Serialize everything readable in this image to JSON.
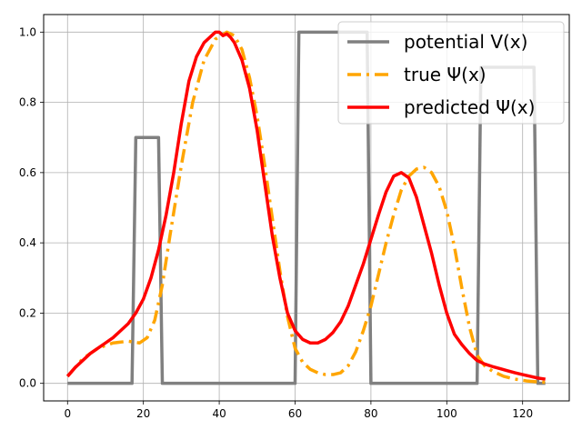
{
  "chart_data": {
    "type": "line",
    "title": "",
    "xlabel": "",
    "ylabel": "",
    "xlim": [
      -6.3,
      132.3
    ],
    "ylim": [
      -0.05,
      1.05
    ],
    "xticks": [
      0,
      20,
      40,
      60,
      80,
      100,
      120
    ],
    "yticks": [
      0.0,
      0.2,
      0.4,
      0.6,
      0.8,
      1.0
    ],
    "grid": true,
    "legend_position": "top-right",
    "series": [
      {
        "name": "potential V(x)",
        "color": "#808080",
        "style": "solid",
        "x": [
          0,
          17,
          18,
          24,
          25,
          60,
          61,
          79,
          80,
          108,
          109,
          123,
          124,
          126
        ],
        "y": [
          0,
          0,
          0.7,
          0.7,
          0,
          0,
          1.0,
          1.0,
          0,
          0,
          0.9,
          0.9,
          0,
          0
        ]
      },
      {
        "name": "true Ψ(x)",
        "color": "#ffa500",
        "style": "dashdot",
        "x": [
          0,
          4,
          8,
          12,
          16,
          19,
          21,
          23,
          25,
          27,
          30,
          33,
          36,
          39,
          42,
          44,
          46,
          48,
          50,
          52,
          54,
          56,
          58,
          60,
          62,
          64,
          66,
          68,
          70,
          72,
          74,
          76,
          78,
          80,
          82,
          84,
          86,
          88,
          90,
          92,
          94,
          96,
          98,
          100,
          102,
          104,
          106,
          108,
          110,
          112,
          115,
          118,
          121,
          124,
          126
        ],
        "y": [
          0.02,
          0.07,
          0.1,
          0.115,
          0.12,
          0.115,
          0.13,
          0.18,
          0.28,
          0.42,
          0.62,
          0.8,
          0.92,
          0.98,
          1.0,
          0.99,
          0.95,
          0.87,
          0.76,
          0.62,
          0.47,
          0.32,
          0.19,
          0.1,
          0.06,
          0.04,
          0.03,
          0.025,
          0.025,
          0.03,
          0.05,
          0.09,
          0.15,
          0.22,
          0.31,
          0.4,
          0.48,
          0.55,
          0.59,
          0.61,
          0.615,
          0.6,
          0.56,
          0.49,
          0.39,
          0.27,
          0.16,
          0.08,
          0.05,
          0.035,
          0.02,
          0.012,
          0.007,
          0.004,
          0.003
        ]
      },
      {
        "name": "predicted Ψ(x)",
        "color": "#ff0000",
        "style": "solid",
        "x": [
          0,
          2,
          4,
          6,
          8,
          10,
          12,
          14,
          16,
          18,
          20,
          22,
          24,
          26,
          28,
          30,
          32,
          34,
          36,
          38,
          39,
          40,
          41,
          42,
          43,
          44,
          46,
          48,
          50,
          52,
          54,
          56,
          58,
          60,
          62,
          64,
          66,
          68,
          70,
          72,
          74,
          76,
          78,
          80,
          82,
          84,
          86,
          88,
          90,
          92,
          94,
          96,
          98,
          100,
          102,
          104,
          106,
          108,
          110,
          112,
          114,
          116,
          118,
          120,
          122,
          124,
          126
        ],
        "y": [
          0.02,
          0.045,
          0.065,
          0.085,
          0.1,
          0.115,
          0.13,
          0.15,
          0.17,
          0.2,
          0.24,
          0.3,
          0.38,
          0.48,
          0.6,
          0.74,
          0.86,
          0.93,
          0.97,
          0.99,
          1.0,
          1.0,
          0.99,
          0.995,
          0.985,
          0.97,
          0.92,
          0.84,
          0.72,
          0.57,
          0.42,
          0.3,
          0.2,
          0.15,
          0.125,
          0.115,
          0.115,
          0.125,
          0.145,
          0.175,
          0.22,
          0.28,
          0.34,
          0.41,
          0.48,
          0.545,
          0.59,
          0.6,
          0.585,
          0.53,
          0.45,
          0.37,
          0.28,
          0.2,
          0.14,
          0.11,
          0.085,
          0.065,
          0.055,
          0.048,
          0.042,
          0.036,
          0.03,
          0.025,
          0.02,
          0.015,
          0.012
        ]
      }
    ]
  }
}
